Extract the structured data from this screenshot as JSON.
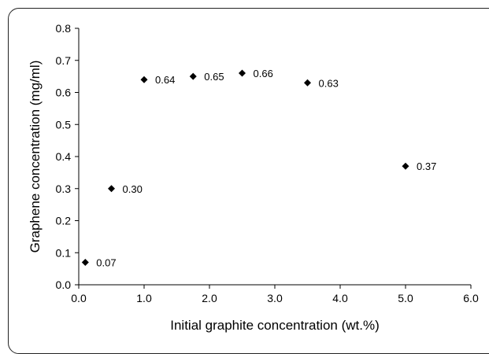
{
  "chart_data": {
    "type": "scatter",
    "title": "",
    "xlabel": "Initial graphite concentration (wt.%)",
    "ylabel": "Graphene concentration (mg/ml)",
    "xlim": [
      0,
      6
    ],
    "ylim": [
      0,
      0.8
    ],
    "x_ticks": [
      "0.0",
      "1.0",
      "2.0",
      "3.0",
      "4.0",
      "5.0",
      "6.0"
    ],
    "y_ticks": [
      "0.0",
      "0.1",
      "0.2",
      "0.3",
      "0.4",
      "0.5",
      "0.6",
      "0.7",
      "0.8"
    ],
    "grid": false,
    "legend": "none",
    "marker": "diamond",
    "marker_color": "#000000",
    "points": [
      {
        "x": 0.1,
        "y": 0.07,
        "label": "0.07"
      },
      {
        "x": 0.5,
        "y": 0.3,
        "label": "0.30"
      },
      {
        "x": 1.0,
        "y": 0.64,
        "label": "0.64"
      },
      {
        "x": 1.75,
        "y": 0.65,
        "label": "0.65"
      },
      {
        "x": 2.5,
        "y": 0.66,
        "label": "0.66"
      },
      {
        "x": 3.5,
        "y": 0.63,
        "label": "0.63"
      },
      {
        "x": 5.0,
        "y": 0.37,
        "label": "0.37"
      }
    ]
  }
}
